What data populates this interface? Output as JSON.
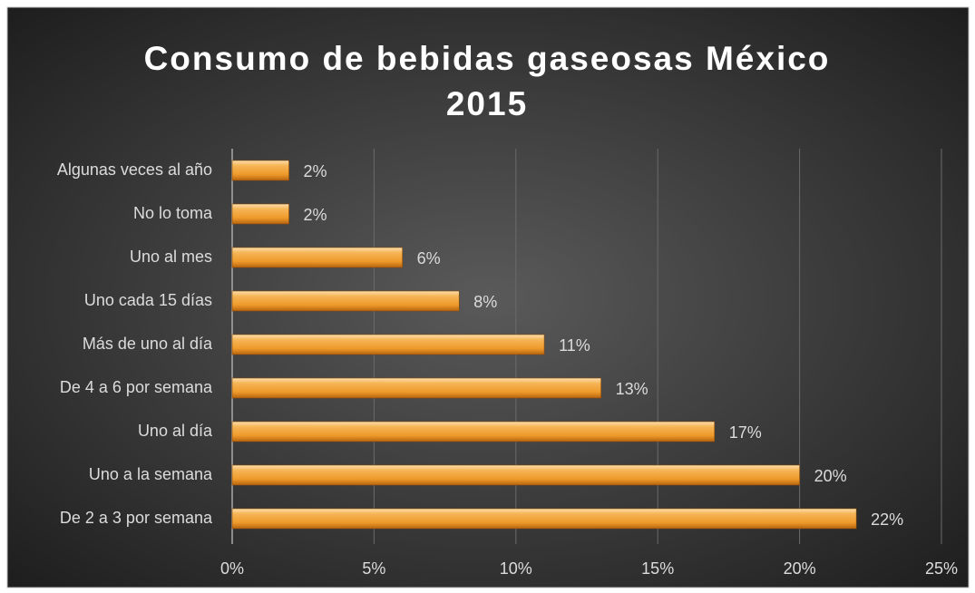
{
  "chart_data": {
    "type": "hbar",
    "title": "Consumo de bebidas gaseosas México 2015",
    "categories": [
      "Algunas veces al año",
      "No lo toma",
      "Uno al mes",
      "Uno cada 15 días",
      "Más de uno al día",
      "De 4 a 6 por semana",
      "Uno al día",
      "Uno a la semana",
      "De 2 a 3 por semana"
    ],
    "values": [
      2,
      2,
      6,
      8,
      11,
      13,
      17,
      20,
      22
    ],
    "value_labels": [
      "2%",
      "2%",
      "6%",
      "8%",
      "11%",
      "13%",
      "17%",
      "20%",
      "22%"
    ],
    "color": "#f0a030",
    "xlim": [
      0,
      25
    ],
    "xticks": [
      {
        "value": 0,
        "label": "0%"
      },
      {
        "value": 5,
        "label": "5%"
      },
      {
        "value": 10,
        "label": "10%"
      },
      {
        "value": 15,
        "label": "15%"
      },
      {
        "value": 20,
        "label": "20%"
      },
      {
        "value": 25,
        "label": "25%"
      }
    ],
    "grid": true
  }
}
